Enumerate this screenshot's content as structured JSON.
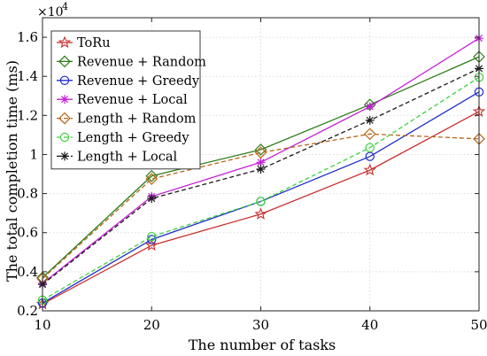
{
  "chart_data": {
    "type": "line",
    "xlabel": "The number of tasks",
    "ylabel": "The total completion time (ms)",
    "y_scale_base": "×10",
    "y_scale_exponent": "4",
    "x": [
      10,
      20,
      30,
      40,
      50
    ],
    "xlim": [
      10,
      50
    ],
    "ylim": [
      0.2,
      1.7
    ],
    "xticks": [
      "10",
      "20",
      "30",
      "40",
      "50"
    ],
    "yticks": [
      "0.2",
      "0.4",
      "0.6",
      "0.8",
      "1",
      "1.2",
      "1.4",
      "1.6"
    ],
    "ytick_values": [
      0.2,
      0.4,
      0.6,
      0.8,
      1.0,
      1.2,
      1.4,
      1.6
    ],
    "grid": true,
    "legend_position": "top-left",
    "series": [
      {
        "name": "ToRu",
        "values": [
          0.235,
          0.535,
          0.695,
          0.92,
          1.22
        ],
        "color": "#c8312f",
        "marker": "star",
        "dash": "solid"
      },
      {
        "name": "Revenue + Random",
        "values": [
          0.37,
          0.89,
          1.025,
          1.255,
          1.5
        ],
        "color": "#2e7d18",
        "marker": "diamond",
        "dash": "solid"
      },
      {
        "name": "Revenue + Greedy",
        "values": [
          0.24,
          0.565,
          0.76,
          0.99,
          1.32
        ],
        "color": "#1f2ccc",
        "marker": "circle",
        "dash": "solid"
      },
      {
        "name": "Revenue + Local",
        "values": [
          0.34,
          0.785,
          0.96,
          1.245,
          1.595
        ],
        "color": "#c520d8",
        "marker": "asterisk",
        "dash": "solid"
      },
      {
        "name": "Length + Random",
        "values": [
          0.365,
          0.875,
          1.01,
          1.105,
          1.08
        ],
        "color": "#b8651a",
        "marker": "diamond",
        "dash": "dashed"
      },
      {
        "name": "Length + Greedy",
        "values": [
          0.255,
          0.58,
          0.76,
          1.035,
          1.395
        ],
        "color": "#3fd13f",
        "marker": "circle",
        "dash": "dashed"
      },
      {
        "name": "Length + Local",
        "values": [
          0.335,
          0.775,
          0.925,
          1.175,
          1.44
        ],
        "color": "#1a1a1a",
        "marker": "asterisk",
        "dash": "dashed"
      }
    ]
  }
}
